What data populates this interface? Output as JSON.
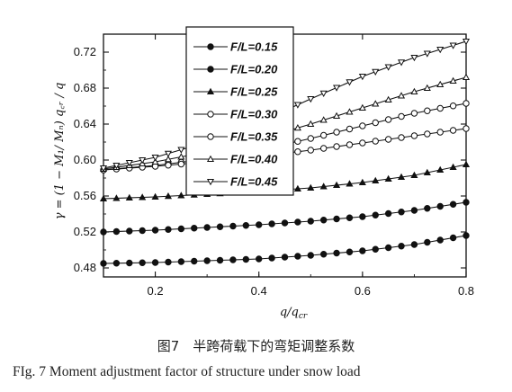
{
  "caption_cn": "图7　半跨荷载下的弯矩调整系数",
  "caption_en": "FIg. 7   Moment adjustment factor of structure under snow load",
  "chart_data": {
    "type": "line",
    "title": "",
    "xlabel": "q/q",
    "xlabel_sub": "cr",
    "ylabel": "γ = (1 − M₁/ Mₙ) q꜀ᵣ / q",
    "xlim": [
      0.1,
      0.8
    ],
    "ylim": [
      0.47,
      0.74
    ],
    "xticks": [
      0.2,
      0.4,
      0.6,
      0.8
    ],
    "xtick_labels": [
      "0.2",
      "0.4",
      "0.6",
      "0.8"
    ],
    "yticks": [
      0.48,
      0.52,
      0.56,
      0.6,
      0.64,
      0.68,
      0.72
    ],
    "ytick_labels": [
      "0.48",
      "0.52",
      "0.56",
      "0.60",
      "0.64",
      "0.68",
      "0.72"
    ],
    "grid": false,
    "legend_position": "top-center",
    "x": [
      0.1,
      0.2,
      0.3,
      0.4,
      0.5,
      0.6,
      0.7,
      0.8
    ],
    "series": [
      {
        "name": "F/L=0.15",
        "marker": "filled-circle",
        "values": [
          0.485,
          0.486,
          0.488,
          0.49,
          0.494,
          0.499,
          0.506,
          0.516
        ]
      },
      {
        "name": "F/L=0.20",
        "marker": "filled-circle",
        "values": [
          0.52,
          0.522,
          0.525,
          0.528,
          0.532,
          0.537,
          0.544,
          0.553
        ]
      },
      {
        "name": "F/L=0.25",
        "marker": "filled-triangle",
        "values": [
          0.557,
          0.559,
          0.562,
          0.565,
          0.569,
          0.575,
          0.583,
          0.595
        ]
      },
      {
        "name": "F/L=0.30",
        "marker": "open-circle",
        "values": [
          0.589,
          0.594,
          0.601,
          0.611,
          0.624,
          0.638,
          0.652,
          0.663
        ]
      },
      {
        "name": "F/L=0.35",
        "marker": "open-circle",
        "values": [
          0.589,
          0.593,
          0.598,
          0.604,
          0.611,
          0.619,
          0.627,
          0.635
        ]
      },
      {
        "name": "F/L=0.40",
        "marker": "open-triangle",
        "values": [
          0.59,
          0.598,
          0.609,
          0.623,
          0.64,
          0.658,
          0.676,
          0.692
        ]
      },
      {
        "name": "F/L=0.45",
        "marker": "open-triangle-down",
        "values": [
          0.591,
          0.603,
          0.62,
          0.642,
          0.668,
          0.693,
          0.714,
          0.732
        ]
      }
    ]
  }
}
